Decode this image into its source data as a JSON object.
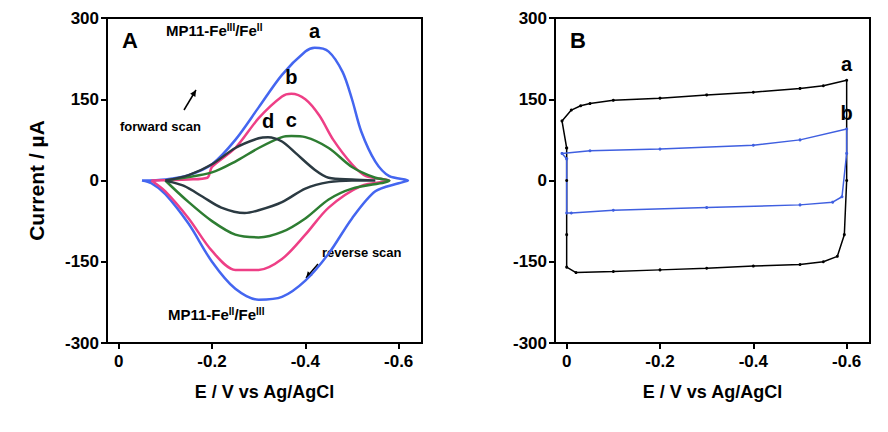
{
  "chart_data": [
    {
      "type": "line",
      "title": "A",
      "xlabel": "E / V vs Ag/AgCl",
      "ylabel": "Current / µA",
      "xlim": [
        0.025,
        -0.65
      ],
      "xticks": [
        0,
        -0.2,
        -0.4,
        -0.6
      ],
      "ylim": [
        -300,
        300
      ],
      "yticks": [
        -300,
        -150,
        0,
        150,
        300
      ],
      "grid": false,
      "annotations": [
        "MP11-FeIII/FeII",
        "MP11-FeII/FeIII",
        "forward scan",
        "reverse scan"
      ],
      "series": [
        {
          "name": "a",
          "color": "#4466f0",
          "x": [
            -0.05,
            -0.1,
            -0.15,
            -0.2,
            -0.25,
            -0.3,
            -0.35,
            -0.4,
            -0.42,
            -0.45,
            -0.48,
            -0.5,
            -0.52,
            -0.55,
            -0.58,
            -0.62,
            -0.6,
            -0.55,
            -0.5,
            -0.45,
            -0.4,
            -0.35,
            -0.3,
            -0.25,
            -0.2,
            -0.15,
            -0.1,
            -0.07,
            -0.05
          ],
          "values": [
            0,
            2,
            10,
            30,
            75,
            135,
            195,
            238,
            245,
            238,
            200,
            150,
            90,
            35,
            8,
            0,
            -5,
            -20,
            -70,
            -135,
            -185,
            -215,
            -220,
            -200,
            -150,
            -80,
            -25,
            -5,
            0
          ]
        },
        {
          "name": "b",
          "color": "#ee3f86",
          "x": [
            -0.07,
            -0.15,
            -0.19,
            -0.2,
            -0.25,
            -0.3,
            -0.35,
            -0.37,
            -0.4,
            -0.43,
            -0.46,
            -0.5,
            -0.53,
            -0.58,
            -0.52,
            -0.45,
            -0.4,
            -0.35,
            -0.3,
            -0.25,
            -0.2,
            -0.15,
            -0.1,
            -0.07
          ],
          "values": [
            0,
            2,
            5,
            25,
            60,
            115,
            155,
            160,
            150,
            120,
            75,
            30,
            8,
            0,
            -10,
            -50,
            -100,
            -145,
            -165,
            -165,
            -130,
            -70,
            -20,
            0
          ]
        },
        {
          "name": "c",
          "color": "#2e7d32",
          "x": [
            -0.1,
            -0.2,
            -0.25,
            -0.3,
            -0.35,
            -0.37,
            -0.4,
            -0.45,
            -0.5,
            -0.55,
            -0.58,
            -0.5,
            -0.45,
            -0.4,
            -0.35,
            -0.3,
            -0.25,
            -0.2,
            -0.15,
            -0.1
          ],
          "values": [
            0,
            15,
            35,
            60,
            80,
            82,
            80,
            60,
            25,
            5,
            0,
            -15,
            -35,
            -70,
            -95,
            -105,
            -100,
            -75,
            -40,
            0
          ]
        },
        {
          "name": "d",
          "color": "#2b3a42",
          "x": [
            -0.1,
            -0.15,
            -0.2,
            -0.25,
            -0.3,
            -0.32,
            -0.35,
            -0.38,
            -0.42,
            -0.45,
            -0.5,
            -0.55,
            -0.5,
            -0.45,
            -0.4,
            -0.35,
            -0.3,
            -0.27,
            -0.22,
            -0.18,
            -0.14,
            -0.1
          ],
          "values": [
            0,
            10,
            30,
            60,
            78,
            80,
            72,
            50,
            20,
            5,
            2,
            0,
            0,
            -3,
            -15,
            -40,
            -55,
            -60,
            -50,
            -30,
            -10,
            0
          ]
        }
      ]
    },
    {
      "type": "line",
      "title": "B",
      "xlabel": "E / V vs Ag/AgCl",
      "xlim": [
        0.025,
        -0.65
      ],
      "xticks": [
        0,
        -0.2,
        -0.4,
        -0.6
      ],
      "ylim": [
        -300,
        300
      ],
      "yticks": [
        -300,
        -150,
        0,
        150,
        300
      ],
      "grid": false,
      "series": [
        {
          "name": "a",
          "color": "#000000",
          "marker": "circle",
          "x": [
            0,
            0.01,
            -0.01,
            -0.03,
            -0.05,
            -0.1,
            -0.2,
            -0.3,
            -0.4,
            -0.5,
            -0.55,
            -0.6,
            -0.6,
            -0.6,
            -0.595,
            -0.58,
            -0.55,
            -0.5,
            -0.4,
            -0.3,
            -0.2,
            -0.1,
            -0.02,
            0,
            0,
            0,
            0
          ],
          "values": [
            60,
            110,
            130,
            138,
            142,
            148,
            152,
            158,
            163,
            170,
            175,
            185,
            130,
            0,
            -100,
            -140,
            -150,
            -155,
            -158,
            -162,
            -165,
            -168,
            -170,
            -160,
            -100,
            0,
            60
          ]
        },
        {
          "name": "b",
          "color": "#3f5fe0",
          "marker": "circle",
          "x": [
            0,
            0.01,
            -0.05,
            -0.2,
            -0.4,
            -0.5,
            -0.6,
            -0.6,
            -0.59,
            -0.57,
            -0.5,
            -0.3,
            -0.1,
            -0.01,
            0,
            0
          ],
          "values": [
            40,
            50,
            55,
            58,
            65,
            75,
            95,
            50,
            -30,
            -40,
            -45,
            -50,
            -55,
            -60,
            -60,
            40
          ]
        }
      ]
    }
  ]
}
